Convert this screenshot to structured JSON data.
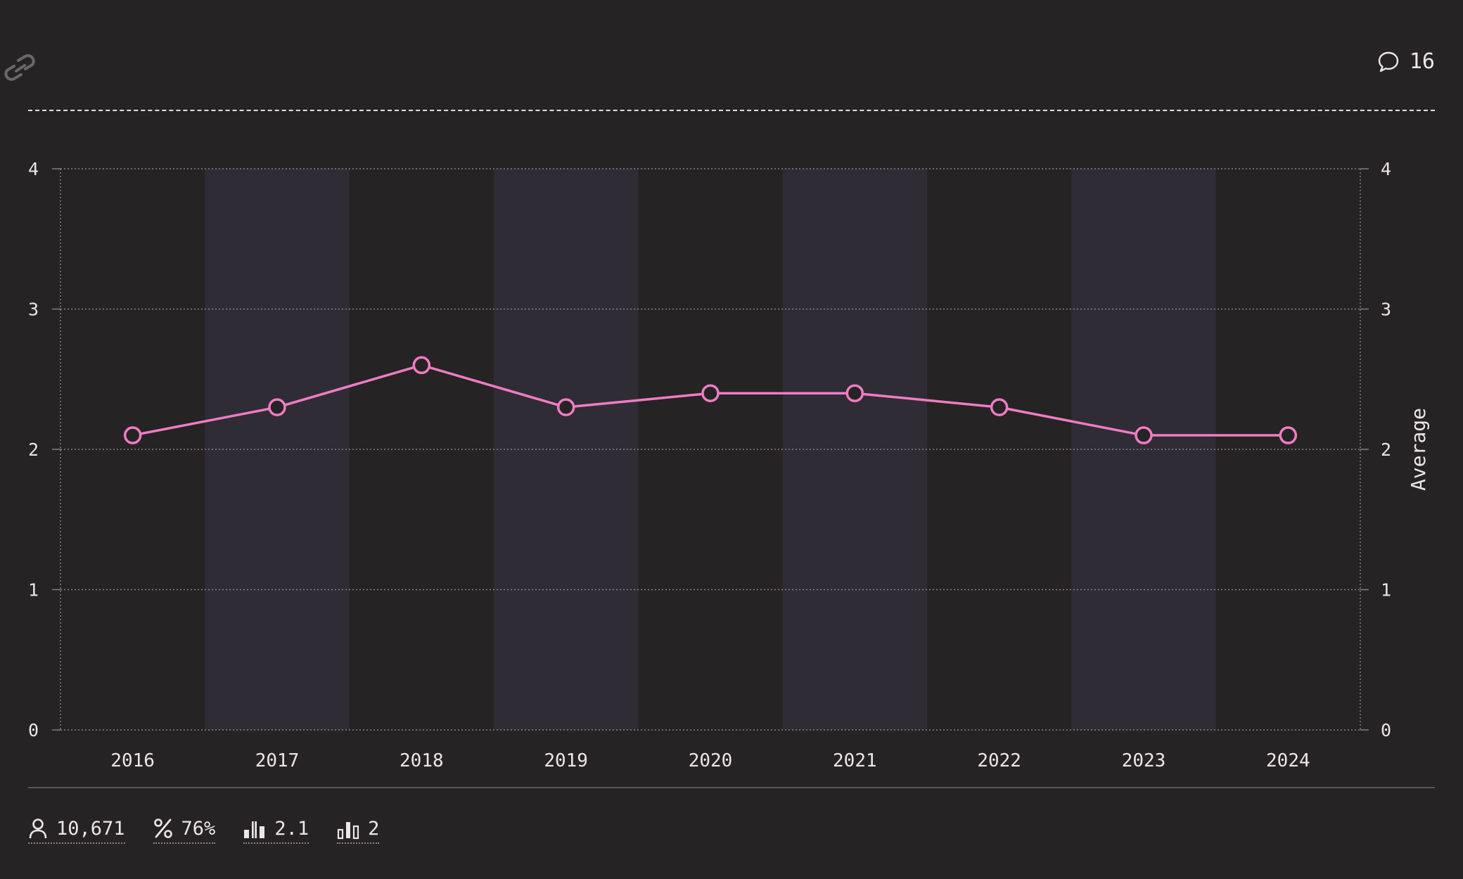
{
  "header": {
    "comment_count": "16"
  },
  "icons": {
    "link": "link-icon",
    "comment": "speech-bubble-icon",
    "respondents": "person-icon",
    "percent": "percent-icon",
    "average": "bar-average-icon",
    "median": "bar-median-icon"
  },
  "stats": {
    "respondents": "10,671",
    "percent": "76%",
    "average": "2.1",
    "median": "2"
  },
  "colors": {
    "background": "#262324",
    "band": "#302c35",
    "line": "#f07cc3",
    "grid": "#8a8588",
    "text": "#ece6e8"
  },
  "chart_data": {
    "type": "line",
    "title": "",
    "xlabel": "",
    "ylabel": "Average",
    "x": [
      "2016",
      "2017",
      "2018",
      "2019",
      "2020",
      "2021",
      "2022",
      "2023",
      "2024"
    ],
    "series": [
      {
        "values": [
          2.1,
          2.3,
          2.6,
          2.3,
          2.4,
          2.4,
          2.3,
          2.1,
          2.1
        ]
      }
    ],
    "ylim": [
      0,
      4
    ],
    "yticks": [
      0,
      1,
      2,
      3,
      4
    ],
    "grid": true,
    "alternating_bands": true,
    "legend": "none"
  }
}
